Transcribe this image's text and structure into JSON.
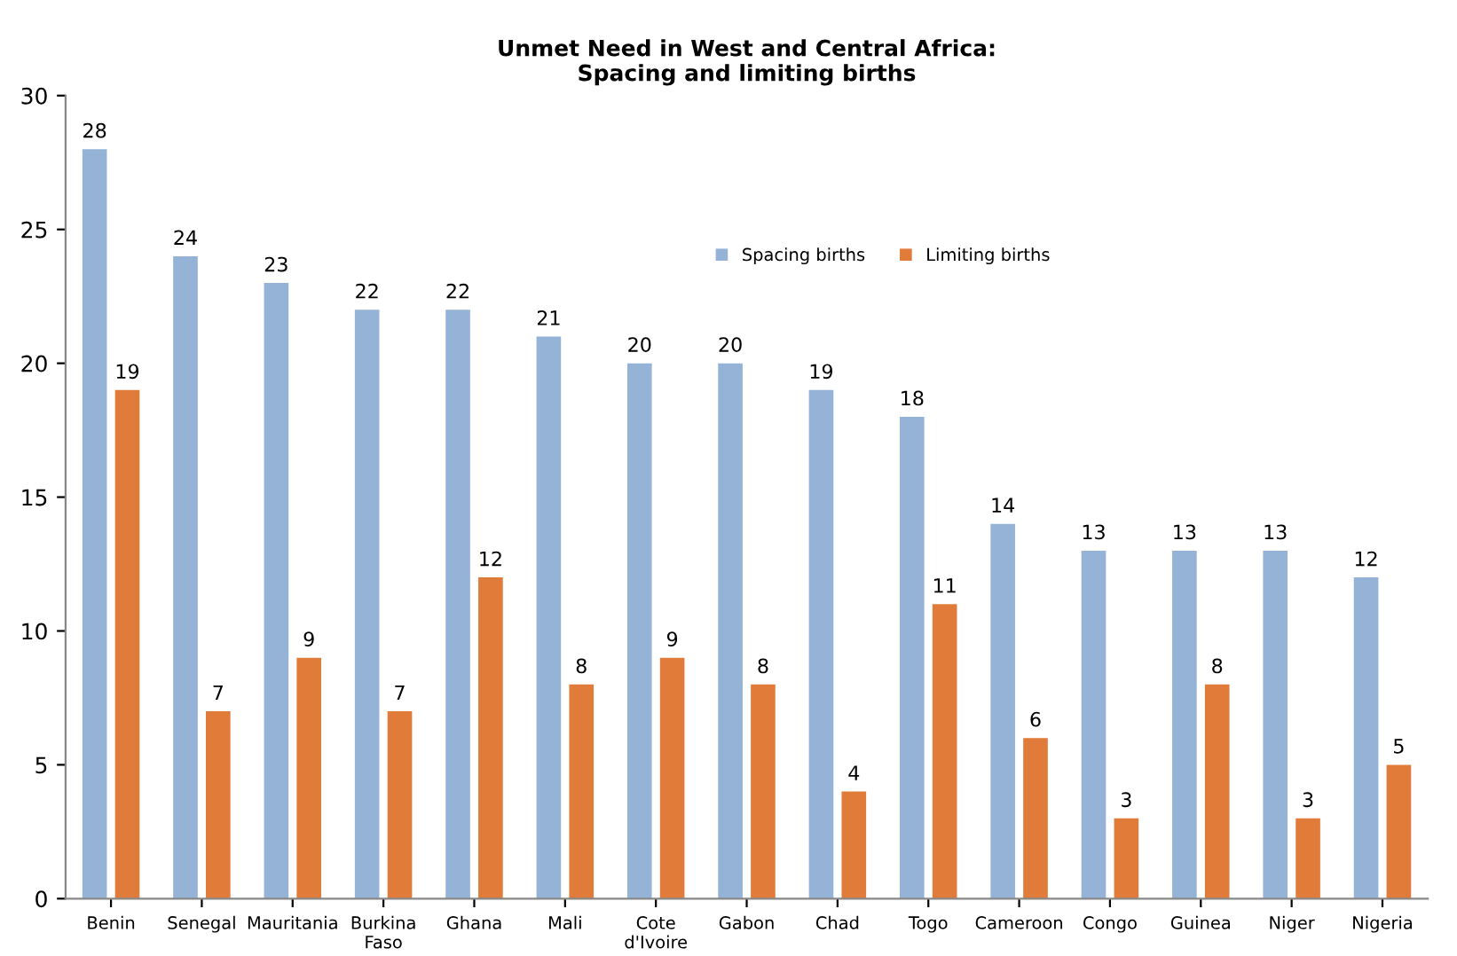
{
  "chart_data": {
    "type": "bar",
    "title": "Unmet Need in West and Central Africa:\nSpacing and limiting births",
    "categories": [
      "Benin",
      "Senegal",
      "Mauritania",
      "Burkina\nFaso",
      "Ghana",
      "Mali",
      "Cote\nd'Ivoire",
      "Gabon",
      "Chad",
      "Togo",
      "Cameroon",
      "Congo",
      "Guinea",
      "Niger",
      "Nigeria"
    ],
    "series": [
      {
        "name": "Spacing births",
        "color": "#95b3d7",
        "values": [
          28,
          24,
          23,
          22,
          22,
          21,
          20,
          20,
          19,
          18,
          14,
          13,
          13,
          13,
          12
        ]
      },
      {
        "name": "Limiting births",
        "color": "#e07b39",
        "values": [
          19,
          7,
          9,
          7,
          12,
          8,
          9,
          8,
          4,
          11,
          6,
          3,
          8,
          3,
          5
        ]
      }
    ],
    "ylim": [
      0,
      30
    ],
    "yticks": [
      0,
      5,
      10,
      15,
      20,
      25,
      30
    ],
    "grid": false,
    "legend": "top",
    "data_labels": true
  }
}
